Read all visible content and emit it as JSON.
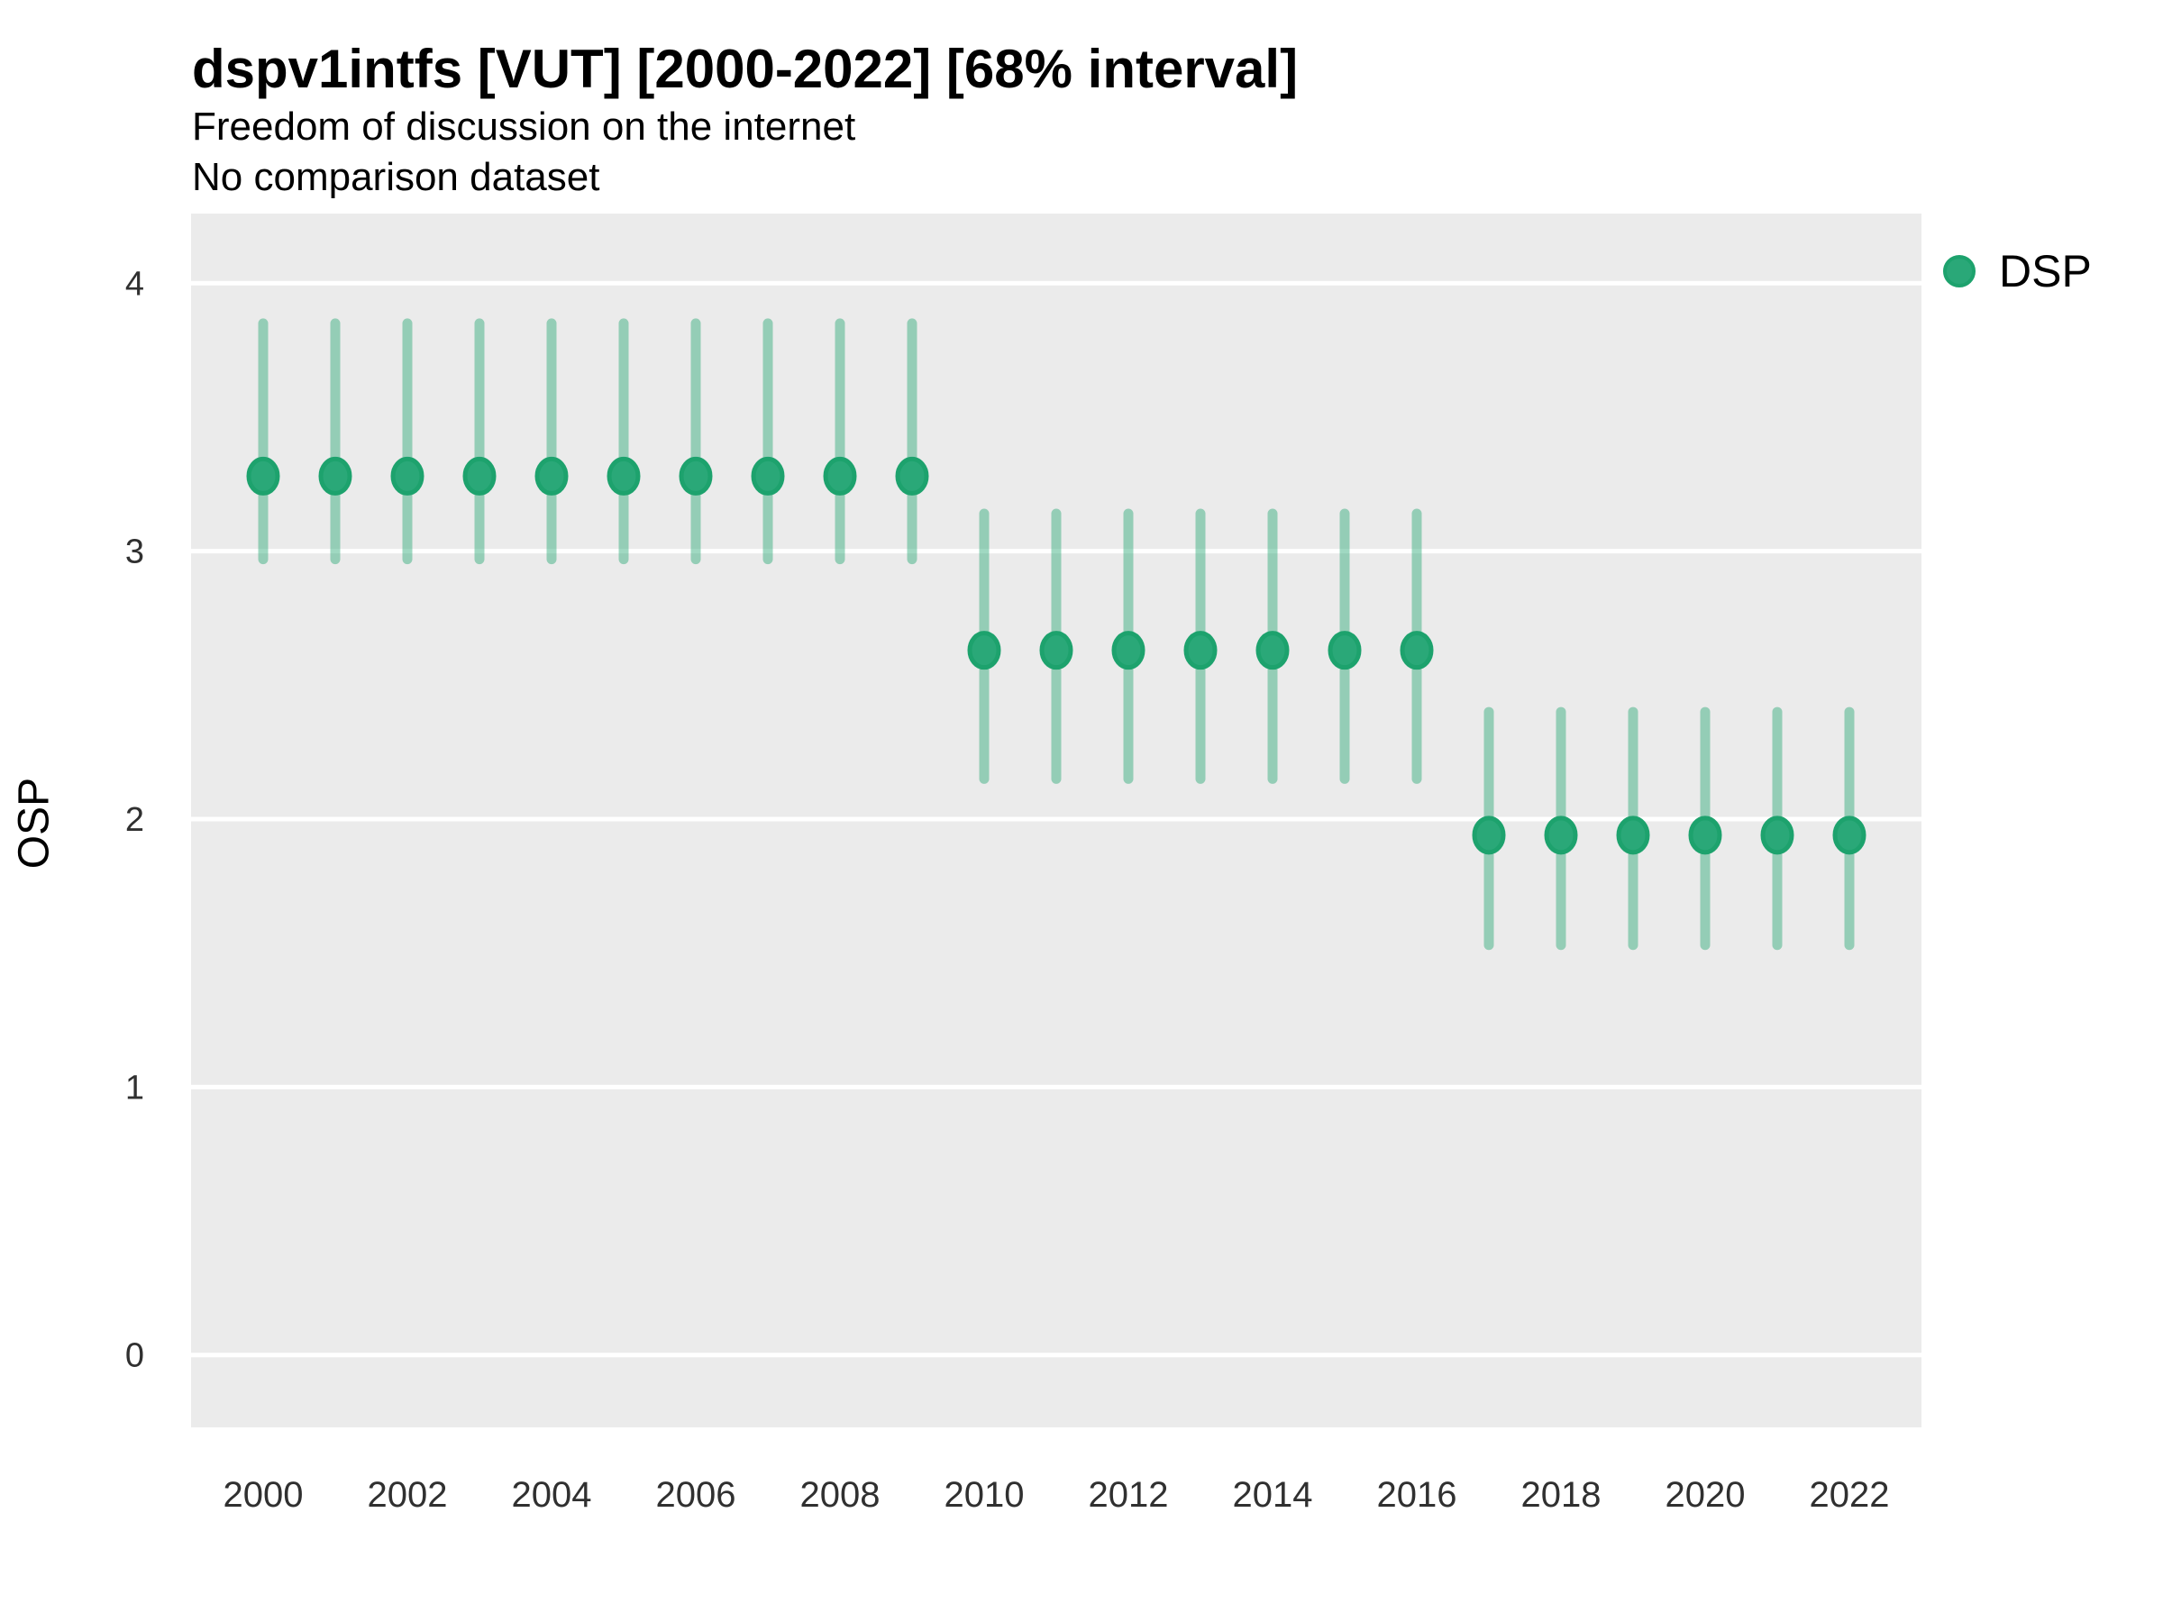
{
  "header": {
    "title": "dspv1intfs [VUT] [2000-2022] [68% interval]",
    "subtitle": "Freedom of discussion on the internet",
    "subtitle2": "No comparison dataset"
  },
  "legend": {
    "label": "DSP",
    "dot_color": "#2aa878",
    "dot_ring_color": "#1da26d",
    "position": "right"
  },
  "colors": {
    "panel_background": "#EBEBEB",
    "gridline": "#FFFFFF",
    "point_fill": "#2aa878",
    "point_ring": "#1da26d",
    "interval_bar": "#2aa876",
    "interval_bar_opacity": 0.45,
    "axis_text": "#303030",
    "title_text": "#000000"
  },
  "chart_data": {
    "type": "scatter",
    "title": "dspv1intfs [VUT] [2000-2022] [68% interval]",
    "subtitle": "Freedom of discussion on the internet",
    "annotation": "No comparison dataset",
    "xlabel": "",
    "ylabel": "OSP",
    "interval_level": "68%",
    "legend_position": "right",
    "grid": true,
    "xlim": [
      1999,
      2023
    ],
    "ylim": [
      -0.27,
      4.26
    ],
    "y_ticks": [
      0,
      1,
      2,
      3,
      4
    ],
    "x_tick_years": [
      2000,
      2002,
      2004,
      2006,
      2008,
      2010,
      2012,
      2014,
      2016,
      2018,
      2020,
      2022
    ],
    "x": [
      2000,
      2001,
      2002,
      2003,
      2004,
      2005,
      2006,
      2007,
      2008,
      2009,
      2010,
      2011,
      2012,
      2013,
      2014,
      2015,
      2016,
      2017,
      2018,
      2019,
      2020,
      2021,
      2022
    ],
    "series": [
      {
        "name": "DSP",
        "estimates": [
          3.28,
          3.28,
          3.28,
          3.28,
          3.28,
          3.28,
          3.28,
          3.28,
          3.28,
          3.28,
          2.63,
          2.63,
          2.63,
          2.63,
          2.63,
          2.63,
          2.63,
          1.94,
          1.94,
          1.94,
          1.94,
          1.94,
          1.94
        ],
        "low": [
          2.97,
          2.97,
          2.97,
          2.97,
          2.97,
          2.97,
          2.97,
          2.97,
          2.97,
          2.97,
          2.15,
          2.15,
          2.15,
          2.15,
          2.15,
          2.15,
          2.15,
          1.53,
          1.53,
          1.53,
          1.53,
          1.53,
          1.53
        ],
        "high": [
          3.85,
          3.85,
          3.85,
          3.85,
          3.85,
          3.85,
          3.85,
          3.85,
          3.85,
          3.85,
          3.14,
          3.14,
          3.14,
          3.14,
          3.14,
          3.14,
          3.14,
          2.4,
          2.4,
          2.4,
          2.4,
          2.4,
          2.4
        ]
      }
    ]
  }
}
